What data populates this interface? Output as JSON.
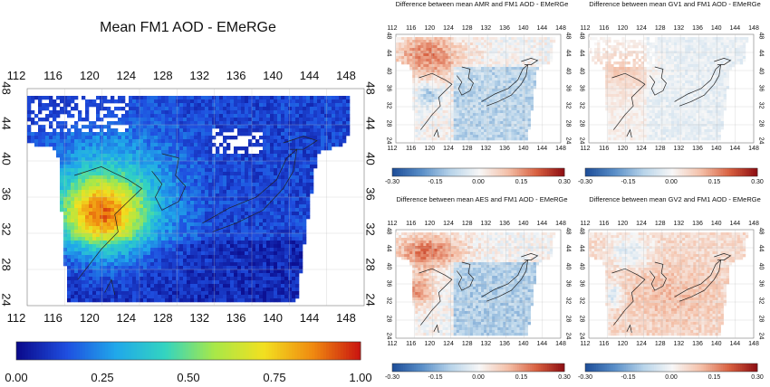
{
  "main": {
    "title": "Mean FM1 AOD - EMeRGe",
    "lon_ticks": [
      "112",
      "116",
      "120",
      "124",
      "128",
      "132",
      "136",
      "140",
      "144",
      "148"
    ],
    "lat_ticks": [
      "24",
      "28",
      "32",
      "36",
      "40",
      "44",
      "48"
    ],
    "colorbar": {
      "labels": [
        "0.00",
        "0.25",
        "0.50",
        "0.75",
        "1.00"
      ],
      "colors": [
        "#0a0a8c",
        "#1f4fe0",
        "#20a8ea",
        "#33d4c0",
        "#a8e848",
        "#f2e020",
        "#f08a10",
        "#c81010"
      ]
    }
  },
  "diff_panels": [
    {
      "title": "Difference between mean AMR and FM1 AOD - EMeRGe"
    },
    {
      "title": "Difference between mean GV1 and FM1 AOD - EMeRGe"
    },
    {
      "title": "Difference between mean AES and FM1 AOD - EMeRGe"
    },
    {
      "title": "Difference between mean GV2 and FM1 AOD - EMeRGe"
    }
  ],
  "diff_scale": {
    "labels": [
      "-0.30",
      "-0.15",
      "0.00",
      "0.15",
      "0.30"
    ],
    "colors": [
      "#1f4f9a",
      "#5a8fc8",
      "#b8d4ea",
      "#f7f7f7",
      "#f4c0a8",
      "#d86040",
      "#8a0a10"
    ]
  }
}
